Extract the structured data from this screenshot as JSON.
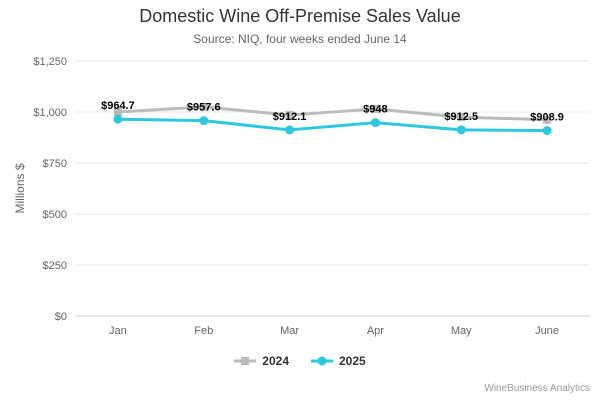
{
  "chart_data": {
    "type": "line",
    "title": "Domestic Wine Off-Premise Sales Value",
    "subtitle": "Source: NIQ, four weeks ended June 14",
    "ylabel": "Millions $",
    "xlabel": "",
    "categories": [
      "Jan",
      "Feb",
      "Mar",
      "Apr",
      "May",
      "June"
    ],
    "ylim": [
      0,
      1250
    ],
    "yticks": [
      0,
      250,
      500,
      750,
      1000,
      1250
    ],
    "ytick_labels": [
      "$0",
      "$250",
      "$500",
      "$750",
      "$1,000",
      "$1,250"
    ],
    "grid": true,
    "legend_position": "bottom",
    "series": [
      {
        "name": "2024",
        "values": [
          1000,
          1025,
          985,
          1015,
          975,
          962
        ],
        "color": "#bbbbbb",
        "marker": "square",
        "data_labels": false
      },
      {
        "name": "2025",
        "values": [
          964.7,
          957.6,
          912.1,
          948,
          912.5,
          908.9
        ],
        "labels": [
          "$964.7",
          "$957.6",
          "$912.1",
          "$948",
          "$912.5",
          "$908.9"
        ],
        "color": "#2ec7e0",
        "marker": "circle",
        "data_labels": true
      }
    ]
  },
  "credit": "WineBusiness Analytics"
}
